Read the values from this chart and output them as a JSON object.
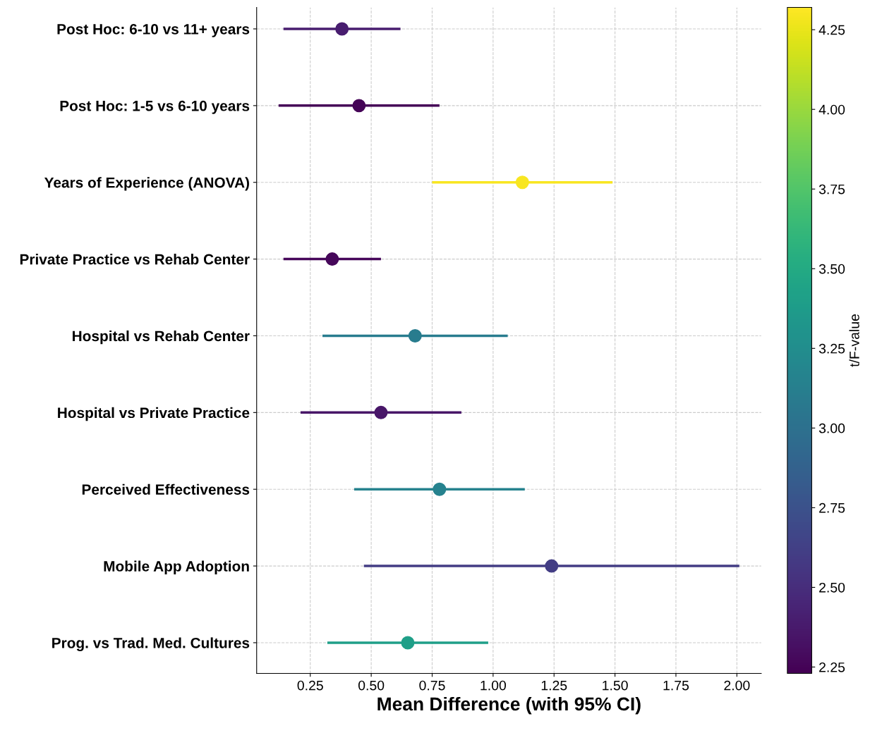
{
  "chart_data": {
    "type": "scatter",
    "categories": [
      "Post Hoc: 6-10 vs 11+ years",
      "Post Hoc: 1-5 vs 6-10 years",
      "Years of Experience (ANOVA)",
      "Private Practice vs Rehab Center",
      "Hospital vs Rehab Center",
      "Hospital vs Private Practice",
      "Perceived Effectiveness",
      "Mobile App Adoption",
      "Prog. vs Trad. Med. Cultures"
    ],
    "values": [
      0.38,
      0.45,
      1.12,
      0.34,
      0.68,
      0.54,
      0.78,
      1.24,
      0.65
    ],
    "errors": [
      [
        0.14,
        0.62
      ],
      [
        0.12,
        0.78
      ],
      [
        0.75,
        1.49
      ],
      [
        0.14,
        0.54
      ],
      [
        0.3,
        1.06
      ],
      [
        0.21,
        0.87
      ],
      [
        0.43,
        1.13
      ],
      [
        0.47,
        2.01
      ],
      [
        0.32,
        0.98
      ]
    ],
    "cvalues": [
      2.4,
      2.25,
      4.3,
      2.27,
      3.1,
      2.35,
      3.15,
      2.6,
      3.4
    ],
    "orientation": "horizontal",
    "xlabel": "Mean Difference (with 95% CI)",
    "clabel": "t/F-value",
    "xlim": [
      0.03,
      2.1
    ],
    "xticks": [
      {
        "value": 0.25,
        "label": "0.25"
      },
      {
        "value": 0.5,
        "label": "0.50"
      },
      {
        "value": 0.75,
        "label": "0.75"
      },
      {
        "value": 1.0,
        "label": "1.00"
      },
      {
        "value": 1.25,
        "label": "1.25"
      },
      {
        "value": 1.5,
        "label": "1.50"
      },
      {
        "value": 1.75,
        "label": "1.75"
      },
      {
        "value": 2.0,
        "label": "2.00"
      }
    ],
    "clim": [
      2.23,
      4.32
    ],
    "cticks": [
      {
        "value": 2.25,
        "label": "2.25"
      },
      {
        "value": 2.5,
        "label": "2.50"
      },
      {
        "value": 2.75,
        "label": "2.75"
      },
      {
        "value": 3.0,
        "label": "3.00"
      },
      {
        "value": 3.25,
        "label": "3.25"
      },
      {
        "value": 3.5,
        "label": "3.50"
      },
      {
        "value": 3.75,
        "label": "3.75"
      },
      {
        "value": 4.0,
        "label": "4.00"
      },
      {
        "value": 4.25,
        "label": "4.25"
      }
    ],
    "grid": true,
    "marker": "circle"
  }
}
